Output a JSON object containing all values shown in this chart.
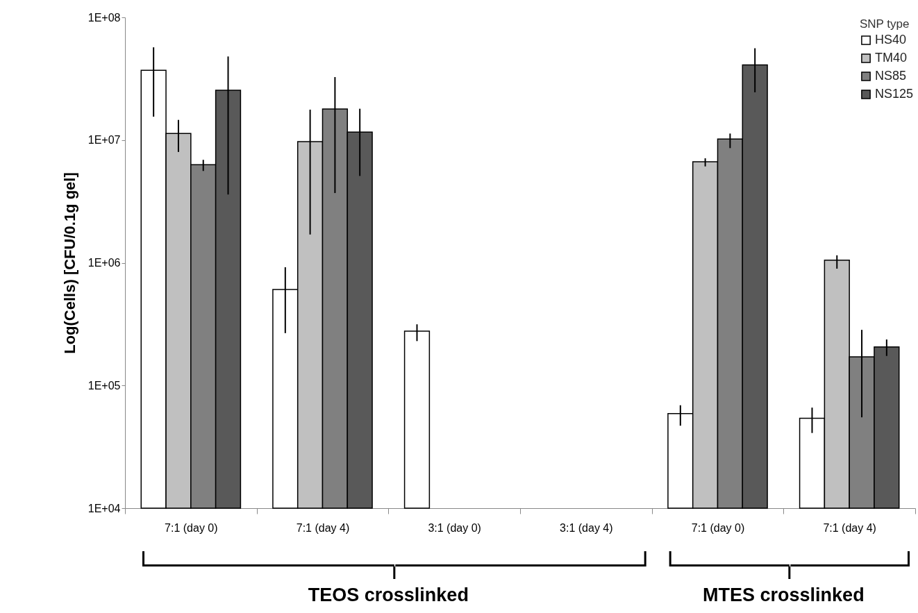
{
  "chart_data": {
    "type": "bar",
    "ylabel": "Log(Cells) [CFU/0.1g gel]",
    "legend_title": "SNP type",
    "legend": "top right",
    "log": true,
    "categories": [
      "7:1 (day 0)",
      "7:1 (day 4)",
      "3:1 (day 0)",
      "3:1 (day 4)",
      "7:1 (day 0)",
      "7:1 (day 4)"
    ],
    "ylim": [
      10000,
      100000000
    ],
    "yticks": [
      {
        "value": 10000,
        "label": "1E+04"
      },
      {
        "value": 100000,
        "label": "1E+05"
      },
      {
        "value": 1000000,
        "label": "1E+06"
      },
      {
        "value": 10000000,
        "label": "1E+07"
      },
      {
        "value": 100000000,
        "label": "1E+08"
      }
    ],
    "series": [
      {
        "name": "HS40",
        "color": "#ffffff",
        "values": [
          37000000,
          605000,
          277000,
          null,
          59000,
          54000
        ],
        "errors": [
          [
            15500000,
            57000000
          ],
          [
            267000,
            920000
          ],
          [
            230000,
            315000
          ],
          null,
          [
            47000,
            69000
          ],
          [
            41000,
            66000
          ]
        ]
      },
      {
        "name": "TM40",
        "color": "#c0c0c0",
        "values": [
          11300000,
          9700000,
          null,
          null,
          6650000,
          1050000
        ],
        "errors": [
          [
            8000000,
            14600000
          ],
          [
            1700000,
            17700000
          ],
          null,
          null,
          [
            6100000,
            7100000
          ],
          [
            895000,
            1150000
          ]
        ]
      },
      {
        "name": "NS85",
        "color": "#808080",
        "values": [
          6300000,
          17900000,
          null,
          null,
          10200000,
          171000
        ],
        "errors": [
          [
            5600000,
            6900000
          ],
          [
            3700000,
            32600000
          ],
          null,
          null,
          [
            8600000,
            11300000
          ],
          [
            55000,
            284000
          ]
        ]
      },
      {
        "name": "NS125",
        "color": "#595959",
        "values": [
          25500000,
          11600000,
          null,
          null,
          41000000,
          206000
        ],
        "errors": [
          [
            3600000,
            48000000
          ],
          [
            5100000,
            18000000
          ],
          null,
          null,
          [
            24500000,
            56000000
          ],
          [
            174000,
            237000
          ]
        ]
      }
    ],
    "annotations": [
      "TEOS crosslinked",
      "MTES crosslinked"
    ]
  }
}
